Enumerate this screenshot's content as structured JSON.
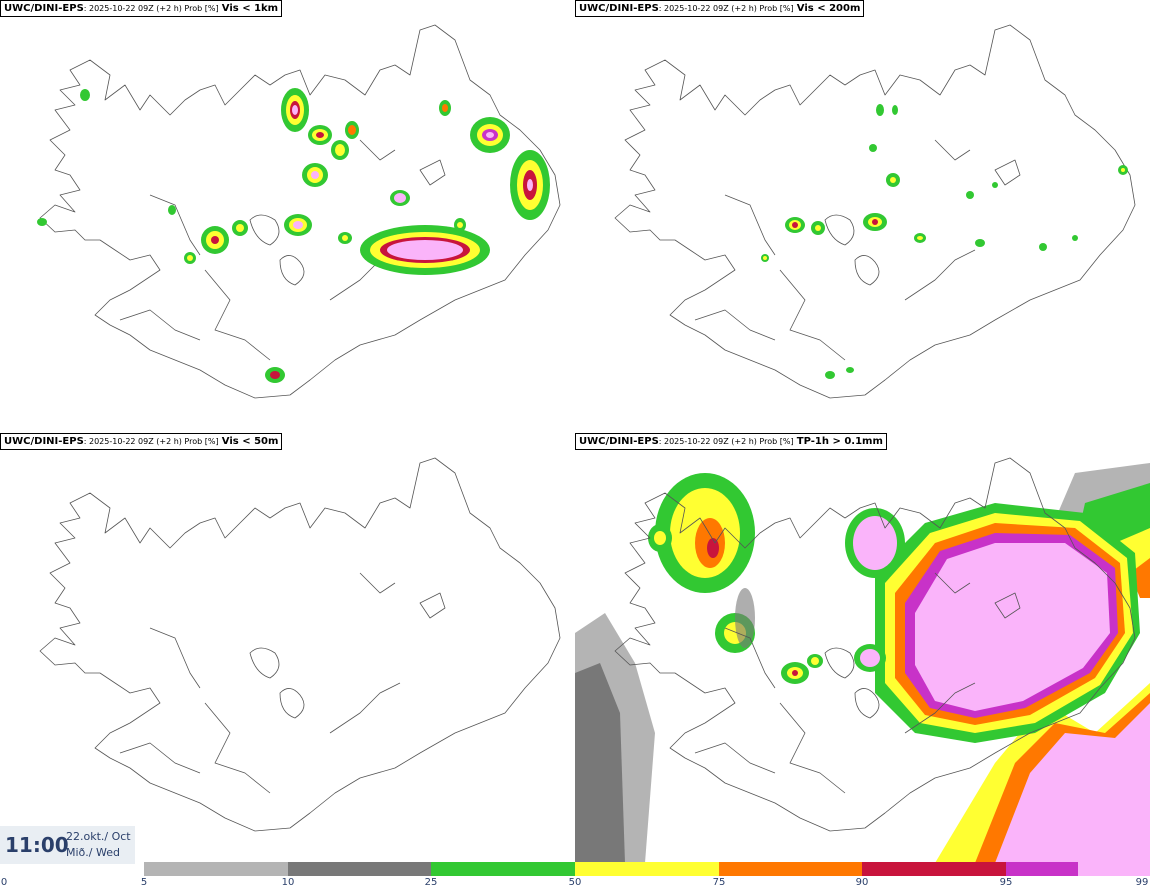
{
  "panels": [
    {
      "model": "UWC/DINI-EPS",
      "meta": ": 2025-10-22 09Z (+2 h) Prob [%]",
      "threshold": "Vis < 1km"
    },
    {
      "model": "UWC/DINI-EPS",
      "meta": ": 2025-10-22 09Z (+2 h) Prob [%]",
      "threshold": "Vis < 200m"
    },
    {
      "model": "UWC/DINI-EPS",
      "meta": ": 2025-10-22 09Z (+2 h) Prob [%]",
      "threshold": "Vis < 50m"
    },
    {
      "model": "UWC/DINI-EPS",
      "meta": ": 2025-10-22 09Z (+2 h) Prob [%]",
      "threshold": "TP-1h > 0.1mm"
    }
  ],
  "timestamp": {
    "time": "11:00",
    "date_line1": "22.okt./ Oct",
    "date_line2": "Mið./ Wed"
  },
  "colorbar": {
    "ticks": [
      "0",
      "5",
      "10",
      "25",
      "50",
      "75",
      "90",
      "95",
      "99"
    ],
    "colors": [
      "#ffffff",
      "#b4b4b4",
      "#787878",
      "#32c832",
      "#ffff32",
      "#ff7800",
      "#c8143c",
      "#c832c8",
      "#fab4fa"
    ]
  }
}
